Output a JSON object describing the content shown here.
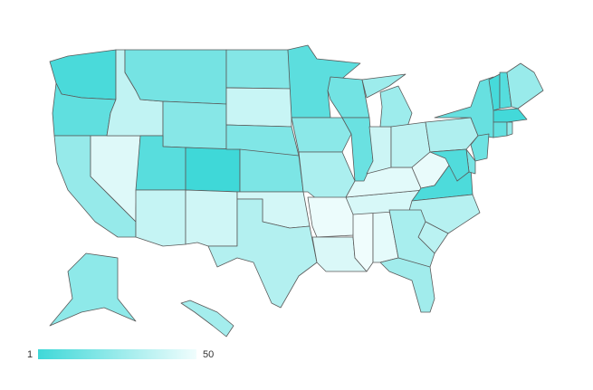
{
  "chart_data": {
    "type": "choropleth",
    "values": [
      4,
      10,
      25,
      45,
      37,
      16,
      21,
      8,
      1,
      38,
      41,
      20,
      39,
      19,
      18,
      42,
      33,
      9,
      22,
      31,
      49,
      44,
      50,
      47,
      43,
      46,
      15,
      13,
      40,
      27,
      36,
      48,
      5,
      34,
      35,
      30,
      28,
      32,
      12,
      14,
      17,
      6,
      3,
      7,
      26,
      2,
      11,
      24,
      23,
      29
    ],
    "scale": {
      "min": 1,
      "max": 50,
      "colors": [
        "#3fd8d8",
        "#f0fdfd"
      ]
    }
  }
}
